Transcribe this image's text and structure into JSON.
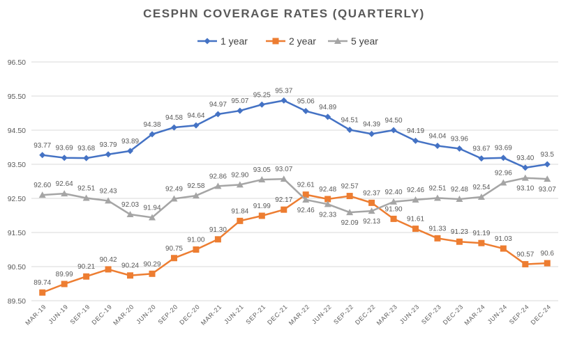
{
  "chart_data": {
    "type": "line",
    "title": "CESPHN COVERAGE RATES (QUARTERLY)",
    "xlabel": "",
    "ylabel": "",
    "ylim": [
      89.5,
      96.5
    ],
    "yticks": [
      "89.50",
      "90.50",
      "91.50",
      "92.50",
      "93.50",
      "94.50",
      "95.50",
      "96.50"
    ],
    "grid": true,
    "legend_position": "top",
    "categories": [
      "MAR-19",
      "JUN-19",
      "SEP-19",
      "DEC-19",
      "MAR-20",
      "JUN-20",
      "SEP-20",
      "DEC-20",
      "MAR-21",
      "JUN-21",
      "SEP-21",
      "DEC-21",
      "MAR-22",
      "JUN-22",
      "SEP-22",
      "DEC-22",
      "MAR-23",
      "JUN-23",
      "SEP-23",
      "DEC-23",
      "MAR-24",
      "JUN-24",
      "SEP-24",
      "DEC-24"
    ],
    "series": [
      {
        "name": "1 year",
        "color": "#4472C4",
        "marker": "diamond",
        "values": [
          93.77,
          93.69,
          93.68,
          93.79,
          93.89,
          94.38,
          94.58,
          94.64,
          94.97,
          95.07,
          95.25,
          95.37,
          95.06,
          94.89,
          94.51,
          94.39,
          94.5,
          94.19,
          94.04,
          93.96,
          93.67,
          93.69,
          93.4,
          93.5
        ],
        "labels": [
          "93.77",
          "93.69",
          "93.68",
          "93.79",
          "93.89",
          "94.38",
          "94.58",
          "94.64",
          "94.97",
          "95.07",
          "95.25",
          "95.37",
          "95.06",
          "94.89",
          "94.51",
          "94.39",
          "94.50",
          "94.19",
          "94.04",
          "93.96",
          "93.67",
          "93.69",
          "93.40",
          "93.5"
        ]
      },
      {
        "name": "2 year",
        "color": "#ED7D31",
        "marker": "square",
        "values": [
          89.74,
          89.99,
          90.21,
          90.42,
          90.24,
          90.29,
          90.75,
          91.0,
          91.3,
          91.84,
          91.99,
          92.17,
          92.61,
          92.48,
          92.57,
          92.37,
          91.9,
          91.61,
          91.33,
          91.23,
          91.19,
          91.03,
          90.57,
          90.6
        ],
        "labels": [
          "89.74",
          "89.99",
          "90.21",
          "90.42",
          "90.24",
          "90.29",
          "90.75",
          "91.00",
          "91.30",
          "91.84",
          "91.99",
          "92.17",
          "92.61",
          "92.48",
          "92.57",
          "92.37",
          "91.90",
          "91.61",
          "91.33",
          "91.23",
          "91.19",
          "91.03",
          "90.57",
          "90.6"
        ]
      },
      {
        "name": "5 year",
        "color": "#A5A5A5",
        "marker": "triangle",
        "values": [
          92.6,
          92.64,
          92.51,
          92.43,
          92.03,
          91.94,
          92.49,
          92.58,
          92.86,
          92.9,
          93.05,
          93.07,
          92.46,
          92.33,
          92.09,
          92.13,
          92.4,
          92.46,
          92.51,
          92.48,
          92.54,
          92.96,
          93.1,
          93.07
        ],
        "labels": [
          "92.60",
          "92.64",
          "92.51",
          "92.43",
          "92.03",
          "91.94",
          "92.49",
          "92.58",
          "92.86",
          "92.90",
          "93.05",
          "93.07",
          "92.46",
          "92.33",
          "92.09",
          "92.13",
          "92.40",
          "92.46",
          "92.51",
          "92.48",
          "92.54",
          "92.96",
          "93.10",
          "93.07"
        ]
      }
    ]
  }
}
